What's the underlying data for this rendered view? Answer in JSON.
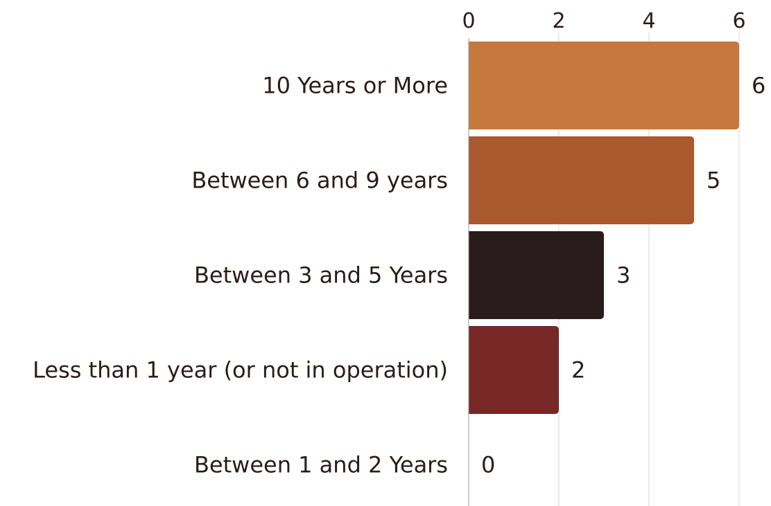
{
  "chart_data": {
    "type": "bar",
    "orientation": "horizontal",
    "categories": [
      "10 Years or More",
      "Between 6 and 9 years",
      "Between 3 and 5 Years",
      "Less than 1 year (or not in operation)",
      "Between 1 and 2 Years"
    ],
    "values": [
      6,
      5,
      3,
      2,
      0
    ],
    "colors": [
      "#C7783E",
      "#AA582D",
      "#2A1B1C",
      "#772826",
      "#772826"
    ],
    "xlim": [
      0,
      6
    ],
    "xticks": [
      0,
      2,
      4,
      6
    ],
    "x_axis_position": "top",
    "grid": true,
    "data_labels": true
  }
}
